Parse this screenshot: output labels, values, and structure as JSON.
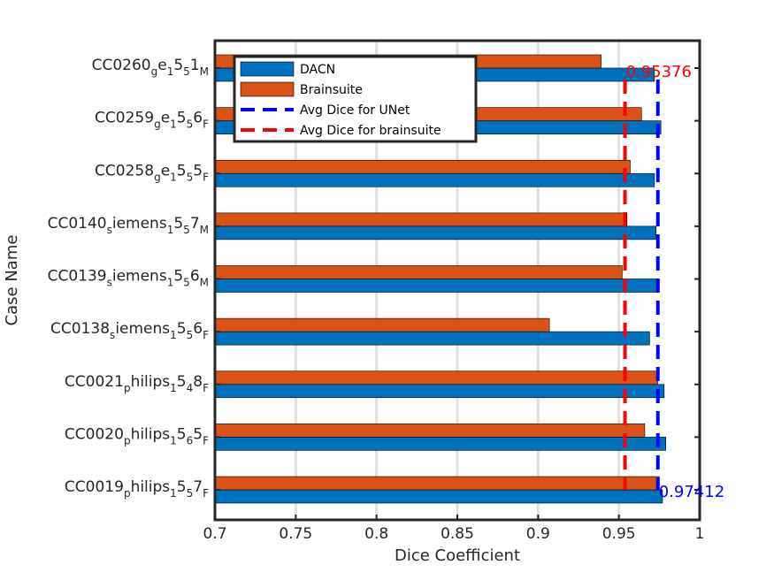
{
  "chart_data": {
    "type": "bar",
    "orientation": "horizontal",
    "xlabel": "Dice Coefficient",
    "ylabel": "Case Name",
    "xlim": [
      0.7,
      1.0
    ],
    "xticks": [
      "0.7",
      "0.75",
      "0.8",
      "0.85",
      "0.9",
      "0.95",
      "1"
    ],
    "grid": "vertical",
    "legend_position": "top-left",
    "categories": [
      {
        "base": "CC0260",
        "sub1": "g",
        "mid1": "e",
        "sub2": "1",
        "mid2": "5",
        "sub3": "5",
        "mid3": "1",
        "sub4": "M"
      },
      {
        "base": "CC0259",
        "sub1": "g",
        "mid1": "e",
        "sub2": "1",
        "mid2": "5",
        "sub3": "5",
        "mid3": "6",
        "sub4": "F"
      },
      {
        "base": "CC0258",
        "sub1": "g",
        "mid1": "e",
        "sub2": "1",
        "mid2": "5",
        "sub3": "5",
        "mid3": "5",
        "sub4": "F"
      },
      {
        "base": "CC0140",
        "sub1": "s",
        "mid1": "iemens",
        "sub2": "1",
        "mid2": "5",
        "sub3": "5",
        "mid3": "7",
        "sub4": "M"
      },
      {
        "base": "CC0139",
        "sub1": "s",
        "mid1": "iemens",
        "sub2": "1",
        "mid2": "5",
        "sub3": "5",
        "mid3": "6",
        "sub4": "M"
      },
      {
        "base": "CC0138",
        "sub1": "s",
        "mid1": "iemens",
        "sub2": "1",
        "mid2": "5",
        "sub3": "5",
        "mid3": "6",
        "sub4": "F"
      },
      {
        "base": "CC0021",
        "sub1": "p",
        "mid1": "hilips",
        "sub2": "1",
        "mid2": "5",
        "sub3": "4",
        "mid3": "8",
        "sub4": "F"
      },
      {
        "base": "CC0020",
        "sub1": "p",
        "mid1": "hilips",
        "sub2": "1",
        "mid2": "5",
        "sub3": "6",
        "mid3": "5",
        "sub4": "F"
      },
      {
        "base": "CC0019",
        "sub1": "p",
        "mid1": "hilips",
        "sub2": "1",
        "mid2": "5",
        "sub3": "5",
        "mid3": "7",
        "sub4": "F"
      }
    ],
    "series": [
      {
        "name": "DACN",
        "color": "#0072BD",
        "values": [
          0.972,
          0.976,
          0.972,
          0.973,
          0.975,
          0.969,
          0.978,
          0.979,
          0.977
        ]
      },
      {
        "name": "Brainsuite",
        "color": "#D95319",
        "values": [
          0.939,
          0.964,
          0.957,
          0.955,
          0.952,
          0.907,
          0.974,
          0.966,
          0.975
        ]
      }
    ],
    "reference_lines": [
      {
        "name": "Avg Dice for UNet",
        "value": 0.97412,
        "label": "0.97412",
        "color": "#0000FF"
      },
      {
        "name": "Avg Dice for brainsuite",
        "value": 0.95376,
        "label": "0.95376",
        "color": "#FF0000"
      }
    ]
  }
}
